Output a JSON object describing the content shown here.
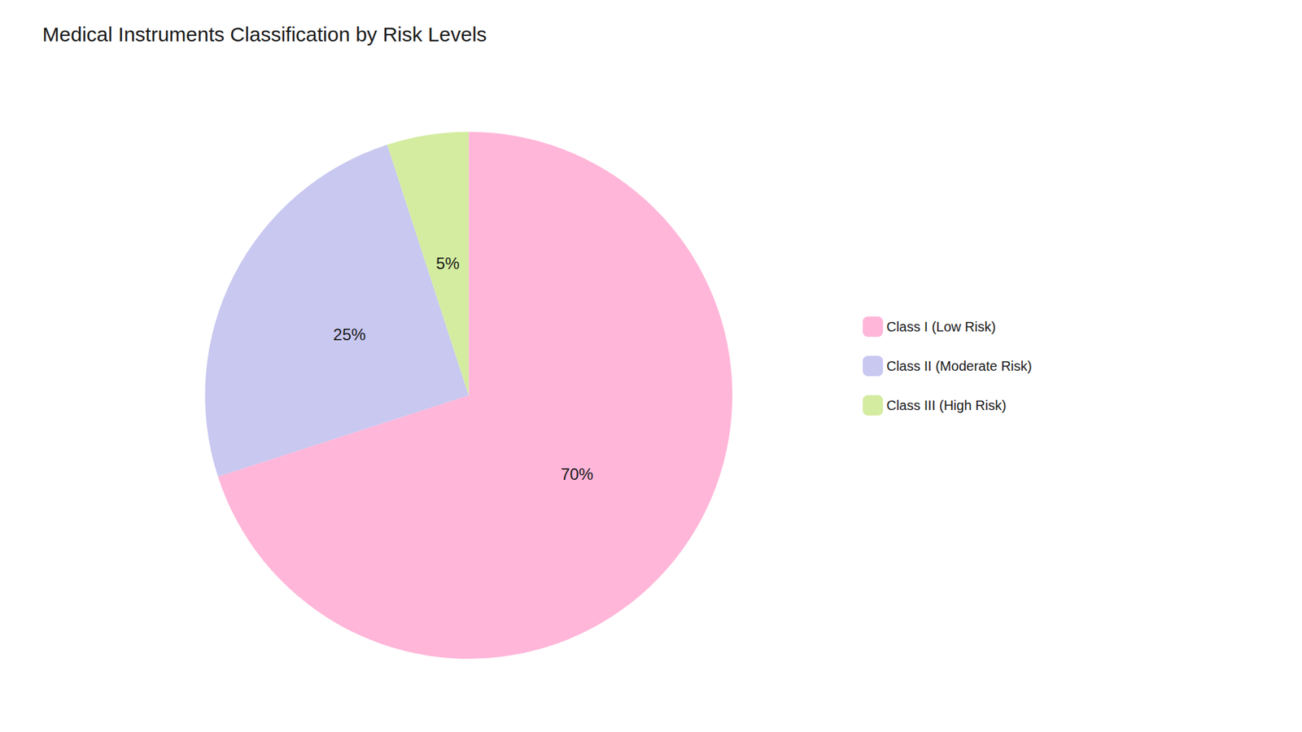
{
  "chart_data": {
    "type": "pie",
    "title": "Medical Instruments Classification by Risk Levels",
    "categories": [
      "Class I (Low Risk)",
      "Class II (Moderate Risk)",
      "Class III (High Risk)"
    ],
    "values": [
      70,
      25,
      5
    ],
    "value_labels": [
      "70%",
      "25%",
      "5%"
    ],
    "colors": [
      "#FFB6D9",
      "#C8C8F0",
      "#D4ECA0"
    ],
    "data_labels": true,
    "legend": "right"
  }
}
